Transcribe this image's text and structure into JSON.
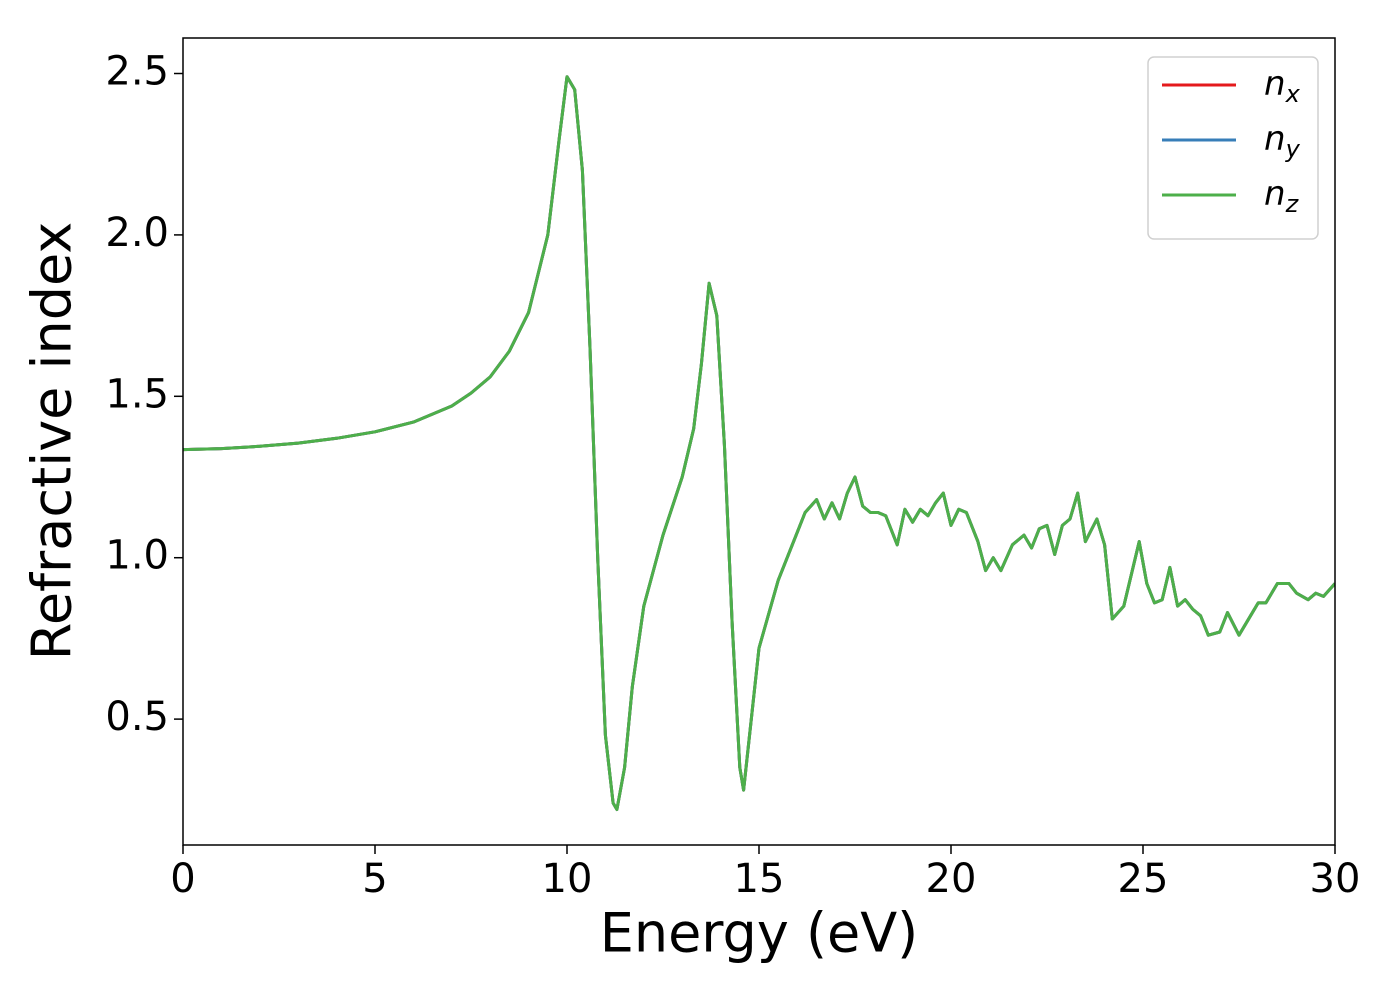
{
  "chart_data": {
    "type": "line",
    "xlabel": "Energy (eV)",
    "ylabel": "Refractive index",
    "x": [
      0,
      1,
      2,
      3,
      4,
      5,
      6,
      7,
      7.5,
      8,
      8.5,
      9,
      9.5,
      9.8,
      10,
      10.2,
      10.4,
      10.6,
      10.8,
      11.0,
      11.2,
      11.3,
      11.5,
      11.7,
      12.0,
      12.5,
      13.0,
      13.3,
      13.5,
      13.7,
      13.9,
      14.1,
      14.3,
      14.5,
      14.6,
      14.8,
      15.0,
      15.5,
      16.0,
      16.2,
      16.5,
      16.7,
      16.9,
      17.1,
      17.3,
      17.5,
      17.7,
      17.9,
      18.1,
      18.3,
      18.6,
      18.8,
      19.0,
      19.2,
      19.4,
      19.6,
      19.8,
      20.0,
      20.2,
      20.4,
      20.7,
      20.9,
      21.1,
      21.3,
      21.6,
      21.9,
      22.1,
      22.3,
      22.5,
      22.7,
      22.9,
      23.1,
      23.3,
      23.5,
      23.8,
      24.0,
      24.2,
      24.5,
      24.9,
      25.1,
      25.3,
      25.5,
      25.7,
      25.9,
      26.1,
      26.3,
      26.5,
      26.7,
      27.0,
      27.2,
      27.5,
      27.8,
      28.0,
      28.2,
      28.5,
      28.8,
      29.0,
      29.3,
      29.5,
      29.7,
      30.0
    ],
    "series": [
      {
        "name": "nx",
        "color": "#e41a1c",
        "values": [
          1.335,
          1.338,
          1.345,
          1.355,
          1.37,
          1.39,
          1.42,
          1.47,
          1.51,
          1.56,
          1.64,
          1.76,
          2.0,
          2.3,
          2.49,
          2.45,
          2.2,
          1.65,
          1.0,
          0.45,
          0.24,
          0.22,
          0.35,
          0.6,
          0.85,
          1.07,
          1.25,
          1.4,
          1.6,
          1.85,
          1.75,
          1.35,
          0.8,
          0.35,
          0.28,
          0.5,
          0.72,
          0.93,
          1.08,
          1.14,
          1.18,
          1.12,
          1.17,
          1.12,
          1.2,
          1.25,
          1.16,
          1.14,
          1.14,
          1.13,
          1.04,
          1.15,
          1.11,
          1.15,
          1.13,
          1.17,
          1.2,
          1.1,
          1.15,
          1.14,
          1.05,
          0.96,
          1.0,
          0.96,
          1.04,
          1.07,
          1.03,
          1.09,
          1.1,
          1.01,
          1.1,
          1.12,
          1.2,
          1.05,
          1.12,
          1.04,
          0.81,
          0.85,
          1.05,
          0.92,
          0.86,
          0.87,
          0.97,
          0.85,
          0.87,
          0.84,
          0.82,
          0.76,
          0.77,
          0.83,
          0.76,
          0.82,
          0.86,
          0.86,
          0.92,
          0.92,
          0.89,
          0.87,
          0.89,
          0.88,
          0.92
        ]
      },
      {
        "name": "ny",
        "color": "#377eb8",
        "values": [
          1.335,
          1.338,
          1.345,
          1.355,
          1.37,
          1.39,
          1.42,
          1.47,
          1.51,
          1.56,
          1.64,
          1.76,
          2.0,
          2.3,
          2.49,
          2.45,
          2.2,
          1.65,
          1.0,
          0.45,
          0.24,
          0.22,
          0.35,
          0.6,
          0.85,
          1.07,
          1.25,
          1.4,
          1.6,
          1.85,
          1.75,
          1.35,
          0.8,
          0.35,
          0.28,
          0.5,
          0.72,
          0.93,
          1.08,
          1.14,
          1.18,
          1.12,
          1.17,
          1.12,
          1.2,
          1.25,
          1.16,
          1.14,
          1.14,
          1.13,
          1.04,
          1.15,
          1.11,
          1.15,
          1.13,
          1.17,
          1.2,
          1.1,
          1.15,
          1.14,
          1.05,
          0.96,
          1.0,
          0.96,
          1.04,
          1.07,
          1.03,
          1.09,
          1.1,
          1.01,
          1.1,
          1.12,
          1.2,
          1.05,
          1.12,
          1.04,
          0.81,
          0.85,
          1.05,
          0.92,
          0.86,
          0.87,
          0.97,
          0.85,
          0.87,
          0.84,
          0.82,
          0.76,
          0.77,
          0.83,
          0.76,
          0.82,
          0.86,
          0.86,
          0.92,
          0.92,
          0.89,
          0.87,
          0.89,
          0.88,
          0.92
        ]
      },
      {
        "name": "nz",
        "color": "#4daf4a",
        "values": [
          1.335,
          1.338,
          1.345,
          1.355,
          1.37,
          1.39,
          1.42,
          1.47,
          1.51,
          1.56,
          1.64,
          1.76,
          2.0,
          2.3,
          2.49,
          2.45,
          2.2,
          1.65,
          1.0,
          0.45,
          0.24,
          0.22,
          0.35,
          0.6,
          0.85,
          1.07,
          1.25,
          1.4,
          1.6,
          1.85,
          1.75,
          1.35,
          0.8,
          0.35,
          0.28,
          0.5,
          0.72,
          0.93,
          1.08,
          1.14,
          1.18,
          1.12,
          1.17,
          1.12,
          1.2,
          1.25,
          1.16,
          1.14,
          1.14,
          1.13,
          1.04,
          1.15,
          1.11,
          1.15,
          1.13,
          1.17,
          1.2,
          1.1,
          1.15,
          1.14,
          1.05,
          0.96,
          1.0,
          0.96,
          1.04,
          1.07,
          1.03,
          1.09,
          1.1,
          1.01,
          1.1,
          1.12,
          1.2,
          1.05,
          1.12,
          1.04,
          0.81,
          0.85,
          1.05,
          0.92,
          0.86,
          0.87,
          0.97,
          0.85,
          0.87,
          0.84,
          0.82,
          0.76,
          0.77,
          0.83,
          0.76,
          0.82,
          0.86,
          0.86,
          0.92,
          0.92,
          0.89,
          0.87,
          0.89,
          0.88,
          0.92
        ]
      }
    ],
    "xlim": [
      0,
      30
    ],
    "xticks": [
      0,
      5,
      10,
      15,
      20,
      25,
      30
    ],
    "ylim": [
      0.11,
      2.61
    ],
    "yticks": [
      0.5,
      {
        "value": 1.0,
        "label": "1.0"
      },
      1.5,
      {
        "value": 2.0,
        "label": "2.0"
      },
      2.5
    ],
    "grid": false,
    "legend": "upper right"
  }
}
